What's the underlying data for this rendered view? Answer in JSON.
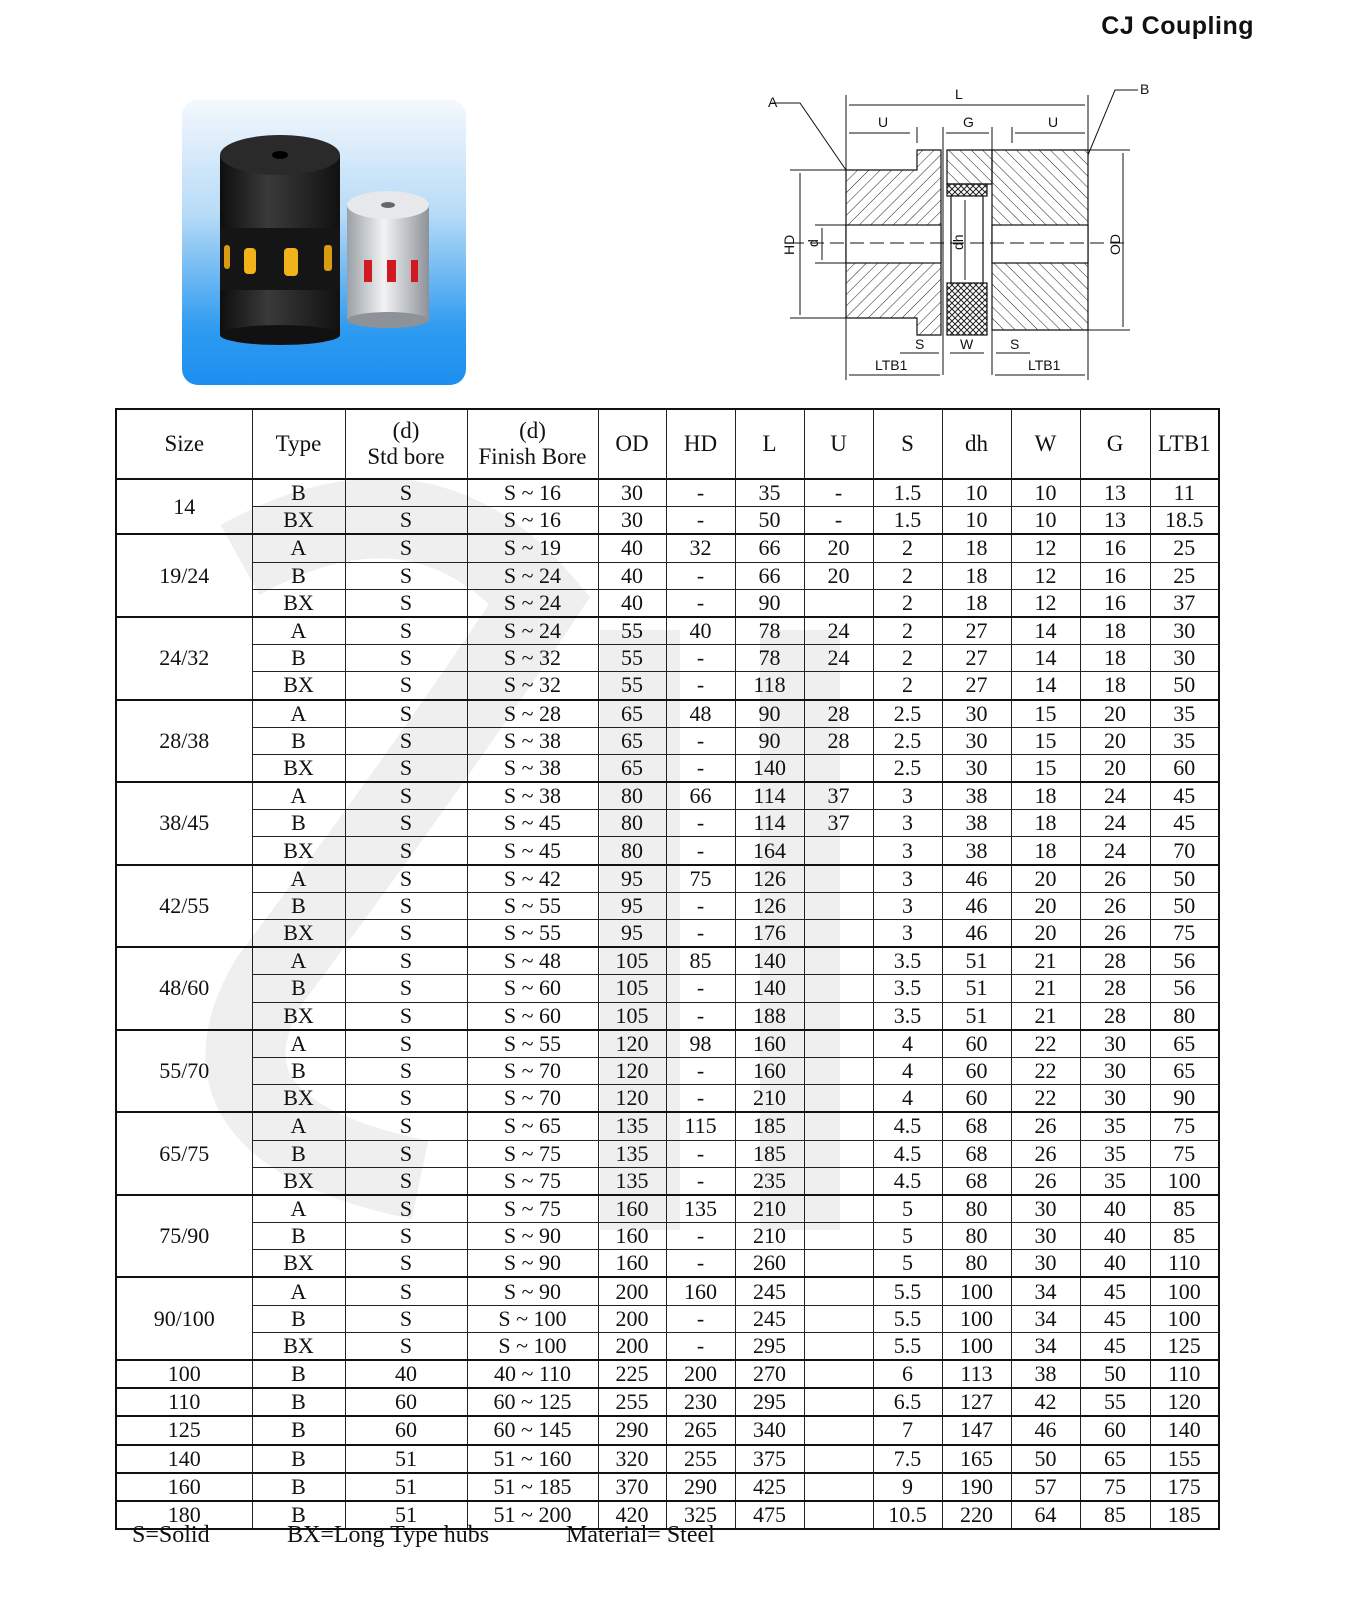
{
  "title": "CJ Coupling",
  "diagram_labels": {
    "A": "A",
    "B": "B",
    "L": "L",
    "U": "U",
    "G": "G",
    "HD": "HD",
    "d": "d",
    "dh": "dh",
    "OD": "OD",
    "S": "S",
    "W": "W",
    "LTB1": "LTB1"
  },
  "colors": {
    "photo_top": "#f4f8fd",
    "photo_bottom": "#1b8ff0",
    "hub_black": "#1c1c1c",
    "spider_yellow": "#f2b21a",
    "hub_silver": "#d4d7dc",
    "spider_red": "#d01a22"
  },
  "table": {
    "headers": [
      "Size",
      "Type",
      "(d)|Std bore",
      "(d)|Finish Bore",
      "OD",
      "HD",
      "L",
      "U",
      "S",
      "dh",
      "W",
      "G",
      "LTB1"
    ],
    "groups": [
      {
        "size": "14",
        "rows": [
          [
            "B",
            "S",
            "S ~ 16",
            "30",
            "-",
            "35",
            "-",
            "1.5",
            "10",
            "10",
            "13",
            "11"
          ],
          [
            "BX",
            "S",
            "S ~ 16",
            "30",
            "-",
            "50",
            "-",
            "1.5",
            "10",
            "10",
            "13",
            "18.5"
          ]
        ]
      },
      {
        "size": "19/24",
        "rows": [
          [
            "A",
            "S",
            "S ~ 19",
            "40",
            "32",
            "66",
            "20",
            "2",
            "18",
            "12",
            "16",
            "25"
          ],
          [
            "B",
            "S",
            "S ~ 24",
            "40",
            "-",
            "66",
            "20",
            "2",
            "18",
            "12",
            "16",
            "25"
          ],
          [
            "BX",
            "S",
            "S ~ 24",
            "40",
            "-",
            "90",
            "",
            "2",
            "18",
            "12",
            "16",
            "37"
          ]
        ]
      },
      {
        "size": "24/32",
        "rows": [
          [
            "A",
            "S",
            "S ~ 24",
            "55",
            "40",
            "78",
            "24",
            "2",
            "27",
            "14",
            "18",
            "30"
          ],
          [
            "B",
            "S",
            "S ~ 32",
            "55",
            "-",
            "78",
            "24",
            "2",
            "27",
            "14",
            "18",
            "30"
          ],
          [
            "BX",
            "S",
            "S ~ 32",
            "55",
            "-",
            "118",
            "",
            "2",
            "27",
            "14",
            "18",
            "50"
          ]
        ]
      },
      {
        "size": "28/38",
        "rows": [
          [
            "A",
            "S",
            "S ~ 28",
            "65",
            "48",
            "90",
            "28",
            "2.5",
            "30",
            "15",
            "20",
            "35"
          ],
          [
            "B",
            "S",
            "S ~ 38",
            "65",
            "-",
            "90",
            "28",
            "2.5",
            "30",
            "15",
            "20",
            "35"
          ],
          [
            "BX",
            "S",
            "S ~ 38",
            "65",
            "-",
            "140",
            "",
            "2.5",
            "30",
            "15",
            "20",
            "60"
          ]
        ]
      },
      {
        "size": "38/45",
        "rows": [
          [
            "A",
            "S",
            "S ~ 38",
            "80",
            "66",
            "114",
            "37",
            "3",
            "38",
            "18",
            "24",
            "45"
          ],
          [
            "B",
            "S",
            "S ~ 45",
            "80",
            "-",
            "114",
            "37",
            "3",
            "38",
            "18",
            "24",
            "45"
          ],
          [
            "BX",
            "S",
            "S ~ 45",
            "80",
            "-",
            "164",
            "",
            "3",
            "38",
            "18",
            "24",
            "70"
          ]
        ]
      },
      {
        "size": "42/55",
        "rows": [
          [
            "A",
            "S",
            "S ~ 42",
            "95",
            "75",
            "126",
            "",
            "3",
            "46",
            "20",
            "26",
            "50"
          ],
          [
            "B",
            "S",
            "S ~ 55",
            "95",
            "-",
            "126",
            "",
            "3",
            "46",
            "20",
            "26",
            "50"
          ],
          [
            "BX",
            "S",
            "S ~ 55",
            "95",
            "-",
            "176",
            "",
            "3",
            "46",
            "20",
            "26",
            "75"
          ]
        ]
      },
      {
        "size": "48/60",
        "rows": [
          [
            "A",
            "S",
            "S ~ 48",
            "105",
            "85",
            "140",
            "",
            "3.5",
            "51",
            "21",
            "28",
            "56"
          ],
          [
            "B",
            "S",
            "S ~ 60",
            "105",
            "-",
            "140",
            "",
            "3.5",
            "51",
            "21",
            "28",
            "56"
          ],
          [
            "BX",
            "S",
            "S ~ 60",
            "105",
            "-",
            "188",
            "",
            "3.5",
            "51",
            "21",
            "28",
            "80"
          ]
        ]
      },
      {
        "size": "55/70",
        "rows": [
          [
            "A",
            "S",
            "S ~ 55",
            "120",
            "98",
            "160",
            "",
            "4",
            "60",
            "22",
            "30",
            "65"
          ],
          [
            "B",
            "S",
            "S ~ 70",
            "120",
            "-",
            "160",
            "",
            "4",
            "60",
            "22",
            "30",
            "65"
          ],
          [
            "BX",
            "S",
            "S ~ 70",
            "120",
            "-",
            "210",
            "",
            "4",
            "60",
            "22",
            "30",
            "90"
          ]
        ]
      },
      {
        "size": "65/75",
        "rows": [
          [
            "A",
            "S",
            "S ~ 65",
            "135",
            "115",
            "185",
            "",
            "4.5",
            "68",
            "26",
            "35",
            "75"
          ],
          [
            "B",
            "S",
            "S ~ 75",
            "135",
            "-",
            "185",
            "",
            "4.5",
            "68",
            "26",
            "35",
            "75"
          ],
          [
            "BX",
            "S",
            "S ~ 75",
            "135",
            "-",
            "235",
            "",
            "4.5",
            "68",
            "26",
            "35",
            "100"
          ]
        ]
      },
      {
        "size": "75/90",
        "rows": [
          [
            "A",
            "S",
            "S ~ 75",
            "160",
            "135",
            "210",
            "",
            "5",
            "80",
            "30",
            "40",
            "85"
          ],
          [
            "B",
            "S",
            "S ~ 90",
            "160",
            "-",
            "210",
            "",
            "5",
            "80",
            "30",
            "40",
            "85"
          ],
          [
            "BX",
            "S",
            "S ~ 90",
            "160",
            "-",
            "260",
            "",
            "5",
            "80",
            "30",
            "40",
            "110"
          ]
        ]
      },
      {
        "size": "90/100",
        "rows": [
          [
            "A",
            "S",
            "S ~ 90",
            "200",
            "160",
            "245",
            "",
            "5.5",
            "100",
            "34",
            "45",
            "100"
          ],
          [
            "B",
            "S",
            "S ~ 100",
            "200",
            "-",
            "245",
            "",
            "5.5",
            "100",
            "34",
            "45",
            "100"
          ],
          [
            "BX",
            "S",
            "S ~ 100",
            "200",
            "-",
            "295",
            "",
            "5.5",
            "100",
            "34",
            "45",
            "125"
          ]
        ]
      },
      {
        "size": "100",
        "rows": [
          [
            "B",
            "40",
            "40 ~ 110",
            "225",
            "200",
            "270",
            "",
            "6",
            "113",
            "38",
            "50",
            "110"
          ]
        ]
      },
      {
        "size": "110",
        "rows": [
          [
            "B",
            "60",
            "60 ~ 125",
            "255",
            "230",
            "295",
            "",
            "6.5",
            "127",
            "42",
            "55",
            "120"
          ]
        ]
      },
      {
        "size": "125",
        "rows": [
          [
            "B",
            "60",
            "60 ~ 145",
            "290",
            "265",
            "340",
            "",
            "7",
            "147",
            "46",
            "60",
            "140"
          ]
        ]
      },
      {
        "size": "140",
        "rows": [
          [
            "B",
            "51",
            "51 ~ 160",
            "320",
            "255",
            "375",
            "",
            "7.5",
            "165",
            "50",
            "65",
            "155"
          ]
        ]
      },
      {
        "size": "160",
        "rows": [
          [
            "B",
            "51",
            "51 ~ 185",
            "370",
            "290",
            "425",
            "",
            "9",
            "190",
            "57",
            "75",
            "175"
          ]
        ]
      },
      {
        "size": "180",
        "rows": [
          [
            "B",
            "51",
            "51 ~ 200",
            "420",
            "325",
            "475",
            "",
            "10.5",
            "220",
            "64",
            "85",
            "185"
          ]
        ]
      }
    ]
  },
  "footer": {
    "solid": "S=Solid",
    "bx": "BX=Long Type hubs",
    "material": "Material= Steel"
  }
}
